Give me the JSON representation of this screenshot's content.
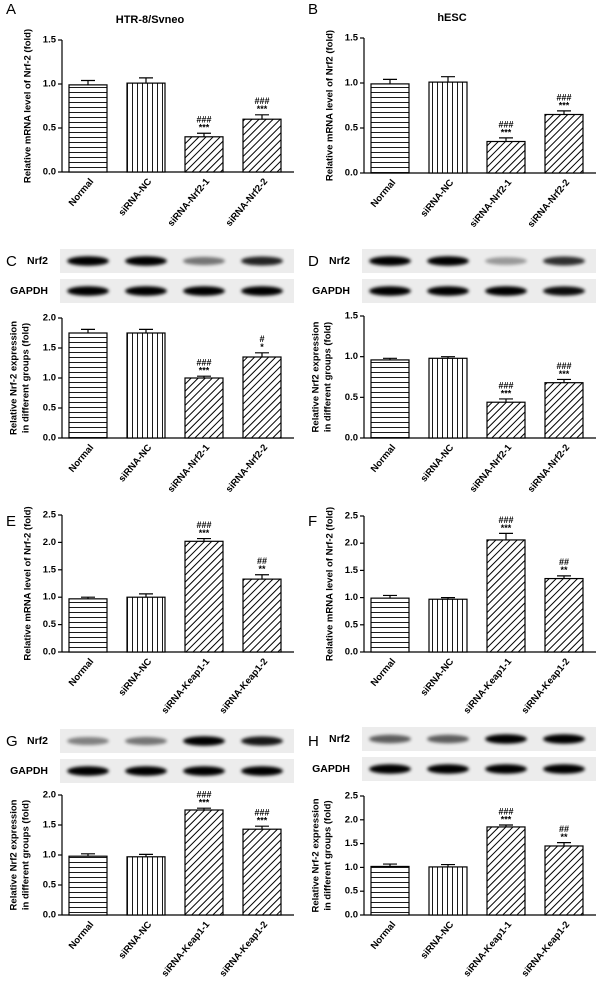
{
  "chart_data": [
    {
      "type": "bar",
      "panel": "A",
      "title": "HTR-8/Svneo",
      "ylabel": "Relative mRNA level of Nrf-2 (fold)",
      "categories": [
        "Normal",
        "siRNA-NC",
        "siRNA-Nrf2-1",
        "siRNA-Nrf2-2"
      ],
      "values": [
        0.99,
        1.01,
        0.4,
        0.6
      ],
      "errors": [
        0.05,
        0.06,
        0.04,
        0.05
      ],
      "significance": [
        null,
        null,
        [
          "###",
          "***"
        ],
        [
          "###",
          "***"
        ]
      ],
      "patterns": [
        "horizontal",
        "vertical",
        "diagonal",
        "diagonal"
      ],
      "color": "#000000",
      "ylim": [
        0,
        1.5
      ],
      "yticks": [
        {
          "value": 0,
          "label": "0.0"
        },
        0.5,
        {
          "value": 1,
          "label": "1.0"
        },
        1.5
      ]
    },
    {
      "type": "bar",
      "panel": "B",
      "title": "hESC",
      "ylabel": "Relative mRNA level of Nrf2 (fold)",
      "categories": [
        "Normal",
        "siRNA-NC",
        "siRNA-Nrf2-1",
        "siRNA-Nrf2-2"
      ],
      "values": [
        0.99,
        1.01,
        0.35,
        0.65
      ],
      "errors": [
        0.05,
        0.06,
        0.04,
        0.04
      ],
      "significance": [
        null,
        null,
        [
          "###",
          "***"
        ],
        [
          "###",
          "***"
        ]
      ],
      "patterns": [
        "horizontal",
        "vertical",
        "diagonal",
        "diagonal"
      ],
      "color": "#000000",
      "ylim": [
        0,
        1.5
      ],
      "yticks": [
        {
          "value": 0,
          "label": "0.0"
        },
        0.5,
        {
          "value": 1,
          "label": "1.0"
        },
        1.5
      ]
    },
    {
      "type": "bar",
      "panel": "C",
      "blot_labels": [
        "Nrf2",
        "GAPDH"
      ],
      "ylabel": [
        "Relative Nrf-2 expression",
        "in different groups (fold)"
      ],
      "categories": [
        "Normal",
        "siRNA-NC",
        "siRNA-Nrf2-1",
        "siRNA-Nrf2-2"
      ],
      "values": [
        1.75,
        1.75,
        1.0,
        1.35
      ],
      "errors": [
        0.06,
        0.06,
        0.03,
        0.07
      ],
      "significance": [
        null,
        null,
        [
          "###",
          "***"
        ],
        [
          "#",
          "*"
        ]
      ],
      "patterns": [
        "horizontal",
        "vertical",
        "diagonal",
        "diagonal"
      ],
      "color": "#000000",
      "ylim": [
        0,
        2
      ],
      "yticks": [
        {
          "value": 0,
          "label": "0.0"
        },
        0.5,
        {
          "value": 1,
          "label": "1.0"
        },
        1.5,
        {
          "value": 2,
          "label": "2.0"
        }
      ]
    },
    {
      "type": "bar",
      "panel": "D",
      "blot_labels": [
        "Nrf2",
        "GAPDH"
      ],
      "ylabel": [
        "Relative Nrf2 expression",
        "in different groups (fold)"
      ],
      "categories": [
        "Normal",
        "siRNA-NC",
        "siRNA-Nrf2-1",
        "siRNA-Nrf2-2"
      ],
      "values": [
        0.96,
        0.98,
        0.44,
        0.68
      ],
      "errors": [
        0.02,
        0.02,
        0.04,
        0.04
      ],
      "significance": [
        null,
        null,
        [
          "###",
          "***"
        ],
        [
          "###",
          "***"
        ]
      ],
      "patterns": [
        "horizontal",
        "vertical",
        "diagonal",
        "diagonal"
      ],
      "color": "#000000",
      "ylim": [
        0,
        1.5
      ],
      "yticks": [
        {
          "value": 0,
          "label": "0.0"
        },
        0.5,
        {
          "value": 1,
          "label": "1.0"
        },
        1.5
      ]
    },
    {
      "type": "bar",
      "panel": "E",
      "ylabel": "Relative mRNA level of Nrf-2 (fold)",
      "categories": [
        "Normal",
        "siRNA-NC",
        "siRNA-Keap1-1",
        "siRNA-Keap1-2"
      ],
      "values": [
        0.97,
        1.0,
        2.02,
        1.33
      ],
      "errors": [
        0.03,
        0.06,
        0.05,
        0.08
      ],
      "significance": [
        null,
        null,
        [
          "###",
          "***"
        ],
        [
          "##",
          "**"
        ]
      ],
      "patterns": [
        "horizontal",
        "vertical",
        "diagonal",
        "diagonal"
      ],
      "color": "#000000",
      "ylim": [
        0,
        2.5
      ],
      "yticks": [
        {
          "value": 0,
          "label": "0.0"
        },
        0.5,
        {
          "value": 1,
          "label": "1.0"
        },
        1.5,
        {
          "value": 2,
          "label": "2.0"
        },
        2.5
      ]
    },
    {
      "type": "bar",
      "panel": "F",
      "ylabel": "Relative mRNA level of Nrf-2 (fold)",
      "categories": [
        "Normal",
        "siRNA-NC",
        "siRNA-Keap1-1",
        "siRNA-Keap1-2"
      ],
      "values": [
        0.99,
        0.97,
        2.06,
        1.35
      ],
      "errors": [
        0.05,
        0.03,
        0.12,
        0.05
      ],
      "significance": [
        null,
        null,
        [
          "###",
          "***"
        ],
        [
          "##",
          "**"
        ]
      ],
      "patterns": [
        "horizontal",
        "vertical",
        "diagonal",
        "diagonal"
      ],
      "color": "#000000",
      "ylim": [
        0,
        2.5
      ],
      "yticks": [
        {
          "value": 0,
          "label": "0.0"
        },
        0.5,
        {
          "value": 1,
          "label": "1.0"
        },
        1.5,
        {
          "value": 2,
          "label": "2.0"
        },
        2.5
      ]
    },
    {
      "type": "bar",
      "panel": "G",
      "blot_labels": [
        "Nrf2",
        "GAPDH"
      ],
      "ylabel": [
        "Relative  Nrf2 expression",
        "in different groups (fold)"
      ],
      "categories": [
        "Normal",
        "siRNA-NC",
        "siRNA-Keap1-1",
        "siRNA-Keap1-2"
      ],
      "values": [
        0.98,
        0.97,
        1.75,
        1.43
      ],
      "errors": [
        0.04,
        0.04,
        0.03,
        0.05
      ],
      "significance": [
        null,
        null,
        [
          "###",
          "***"
        ],
        [
          "###",
          "***"
        ]
      ],
      "patterns": [
        "horizontal",
        "vertical",
        "diagonal",
        "diagonal"
      ],
      "color": "#000000",
      "ylim": [
        0,
        2
      ],
      "yticks": [
        {
          "value": 0,
          "label": "0.0"
        },
        0.5,
        {
          "value": 1,
          "label": "1.0"
        },
        1.5,
        {
          "value": 2,
          "label": "2.0"
        }
      ]
    },
    {
      "type": "bar",
      "panel": "H",
      "blot_labels": [
        "Nrf2",
        "GAPDH"
      ],
      "ylabel": [
        "Relative Nrf-2 expression",
        "in different groups (fold)"
      ],
      "categories": [
        "Normal",
        "siRNA-NC",
        "siRNA-Keap1-1",
        "siRNA-Keap1-2"
      ],
      "values": [
        1.02,
        1.01,
        1.85,
        1.45
      ],
      "errors": [
        0.05,
        0.05,
        0.04,
        0.07
      ],
      "significance": [
        null,
        null,
        [
          "###",
          "***"
        ],
        [
          "##",
          "**"
        ]
      ],
      "patterns": [
        "horizontal",
        "vertical",
        "diagonal",
        "diagonal"
      ],
      "color": "#000000",
      "ylim": [
        0,
        2.5
      ],
      "yticks": [
        {
          "value": 0,
          "label": "0.0"
        },
        0.5,
        {
          "value": 1,
          "label": "1.0"
        },
        1.5,
        {
          "value": 2,
          "label": "2.0"
        },
        2.5
      ]
    }
  ]
}
